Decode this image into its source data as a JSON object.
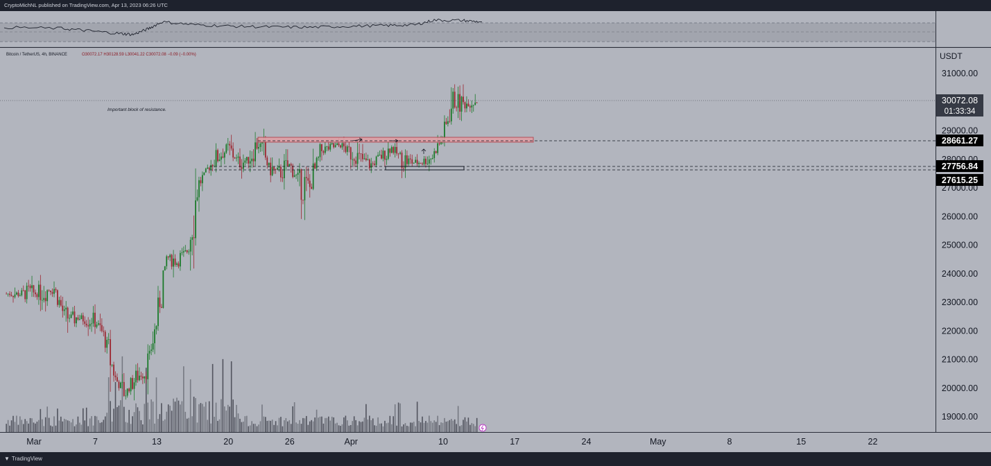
{
  "header": {
    "published": "CryptoMichNL published on TradingView.com, Apr 13, 2023 06:26 UTC"
  },
  "footer": {
    "logo_icon": "tradingview-logo-icon",
    "brand": "TradingView"
  },
  "legend": {
    "symbol": "Bitcoin / TetherUS, 4h, BINANCE",
    "ohlc": "O30072.17 H30128.59 L30041.22 C30072.08 −0.09 (−0.00%)"
  },
  "annotation": {
    "text": "Important block of resistance."
  },
  "price_axis": {
    "currency": "USDT",
    "labels": [
      "31000.00",
      "30000.00",
      "29000.00",
      "28000.00",
      "27000.00",
      "26000.00",
      "25000.00",
      "24000.00",
      "23000.00",
      "22000.00",
      "21000.00",
      "20000.00",
      "19000.00"
    ]
  },
  "time_axis": {
    "labels": [
      "Mar",
      "7",
      "13",
      "20",
      "26",
      "Apr",
      "10",
      "17",
      "24",
      "May",
      "8",
      "15",
      "22"
    ]
  },
  "badges": {
    "last_price": "30072.08",
    "countdown": "01:33:34",
    "level_1": "28661.27",
    "level_2": "27756.84",
    "level_3": "27615.25"
  },
  "colors": {
    "background": "#b2b5be",
    "up": "#1b7a2a",
    "down": "#9c2630",
    "volume": "#5d606b",
    "resistance_zone": "#e0a0a6",
    "resistance_border": "#b2434e"
  },
  "chart_data": {
    "type": "candlestick",
    "interval": "4h",
    "ylim": [
      18600,
      31800
    ],
    "resistance_zone": [
      28580,
      28780
    ],
    "support_box": [
      27615,
      27756
    ],
    "horizontal_levels": [
      28661.27,
      27756.84,
      27615.25
    ],
    "path": [
      [
        "03-01",
        23300
      ],
      [
        "03-03",
        23500
      ],
      [
        "03-04",
        22500
      ],
      [
        "03-07",
        22400
      ],
      [
        "03-08",
        21700
      ],
      [
        "03-09",
        20300
      ],
      [
        "03-10",
        19800
      ],
      [
        "03-11",
        20400
      ],
      [
        "03-12",
        20600
      ],
      [
        "03-13",
        22300
      ],
      [
        "03-14",
        24600
      ],
      [
        "03-15",
        24400
      ],
      [
        "03-16",
        24800
      ],
      [
        "03-17",
        27000
      ],
      [
        "03-18",
        27700
      ],
      [
        "03-19",
        28100
      ],
      [
        "03-20",
        28400
      ],
      [
        "03-21",
        27900
      ],
      [
        "03-22",
        28000
      ],
      [
        "03-23",
        28600
      ],
      [
        "03-24",
        27700
      ],
      [
        "03-25",
        27500
      ],
      [
        "03-26",
        27800
      ],
      [
        "03-27",
        27200
      ],
      [
        "03-28",
        27000
      ],
      [
        "03-29",
        28300
      ],
      [
        "03-30",
        28400
      ],
      [
        "03-31",
        28500
      ],
      [
        "04-01",
        28200
      ],
      [
        "04-02",
        28000
      ],
      [
        "04-03",
        27800
      ],
      [
        "04-04",
        28100
      ],
      [
        "04-05",
        28400
      ],
      [
        "04-06",
        28000
      ],
      [
        "04-07",
        27900
      ],
      [
        "04-08",
        27900
      ],
      [
        "04-09",
        28100
      ],
      [
        "04-10",
        28800
      ],
      [
        "04-11",
        30100
      ],
      [
        "04-12",
        29900
      ],
      [
        "04-13",
        30072
      ]
    ],
    "rsi_path": [
      [
        0,
        55
      ],
      [
        0.12,
        52
      ],
      [
        0.18,
        45
      ],
      [
        0.24,
        38
      ],
      [
        0.27,
        35
      ],
      [
        0.3,
        50
      ],
      [
        0.33,
        70
      ],
      [
        0.4,
        62
      ],
      [
        0.48,
        58
      ],
      [
        0.56,
        56
      ],
      [
        0.64,
        55
      ],
      [
        0.72,
        58
      ],
      [
        0.8,
        60
      ],
      [
        0.86,
        62
      ],
      [
        0.9,
        75
      ],
      [
        0.96,
        74
      ],
      [
        1.0,
        70
      ]
    ]
  }
}
